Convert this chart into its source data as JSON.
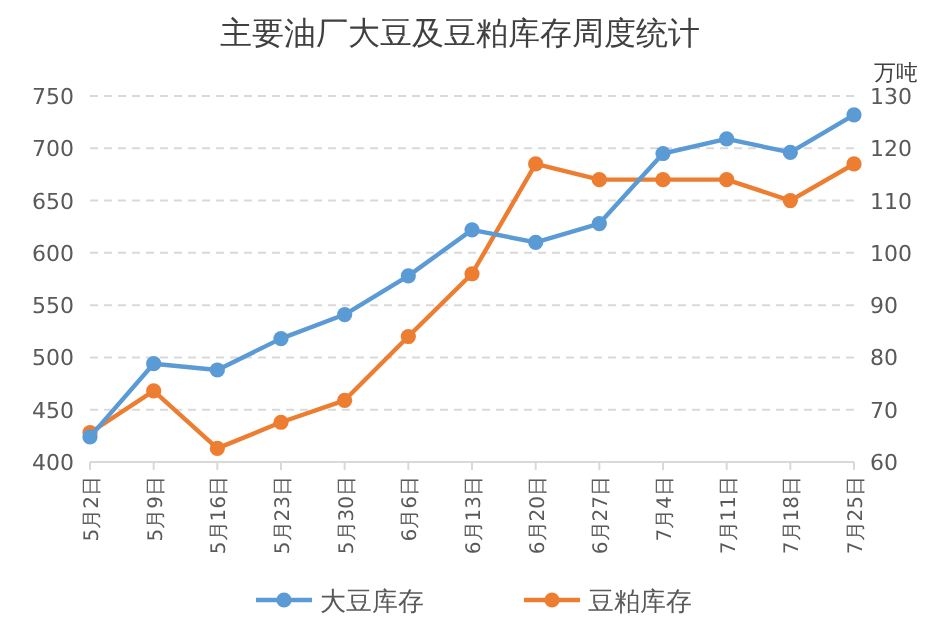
{
  "chart_data": {
    "type": "line",
    "title": "主要油厂大豆及豆粕库存周度统计",
    "y2label": "万吨",
    "categories": [
      "5月2日",
      "5月9日",
      "5月16日",
      "5月23日",
      "5月30日",
      "6月6日",
      "6月13日",
      "6月20日",
      "6月27日",
      "7月4日",
      "7月11日",
      "7月18日",
      "7月25日"
    ],
    "series": [
      {
        "name": "大豆库存",
        "color": "#5b9bd5",
        "values": [
          424,
          494,
          488,
          518,
          541,
          578,
          622,
          610,
          628,
          695,
          709,
          696,
          732
        ]
      },
      {
        "name": "豆粕库存",
        "color": "#ed7d31",
        "axis": "y2",
        "values": [
          65.6,
          73.6,
          62.6,
          67.6,
          71.8,
          84,
          96,
          117,
          114,
          114,
          114,
          110,
          117
        ]
      }
    ],
    "ylim": [
      400,
      750
    ],
    "yticks": [
      400,
      450,
      500,
      550,
      600,
      650,
      700,
      750
    ],
    "y2lim": [
      60,
      130
    ],
    "y2ticks": [
      60,
      70,
      80,
      90,
      100,
      110,
      120,
      130
    ],
    "grid": "y",
    "legend": "bottom",
    "marker": "circle",
    "line_style": "solid"
  }
}
